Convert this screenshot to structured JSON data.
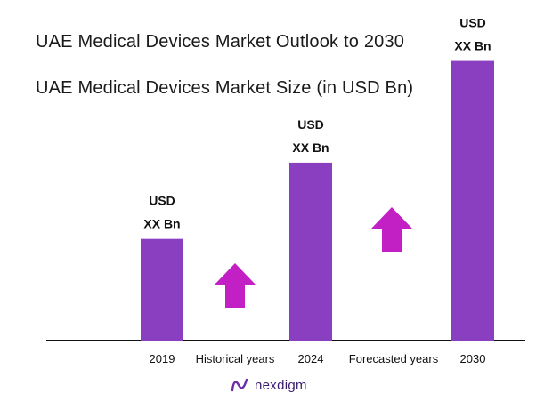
{
  "title": "UAE Medical Devices Market Outlook to 2030",
  "subtitle": "UAE Medical Devices Market Size (in USD Bn)",
  "colors": {
    "bar": "#8a3fc0",
    "arrow": "#c21fc4",
    "axis": "#111111"
  },
  "chart_data": {
    "type": "bar",
    "categories": [
      "2019",
      "2024",
      "2030"
    ],
    "values": [
      1.0,
      1.75,
      2.75
    ],
    "value_note": "relative heights; actual values not printed",
    "bar_labels": [
      [
        "USD",
        "XX Bn"
      ],
      [
        "USD",
        "XX Bn"
      ],
      [
        "USD",
        "XX Bn"
      ]
    ],
    "period_labels": [
      "Historical years",
      "Forecasted years"
    ],
    "ylim": [
      0,
      3
    ],
    "grid": false,
    "legend": "none"
  },
  "logo": {
    "text": "nexdigm"
  }
}
